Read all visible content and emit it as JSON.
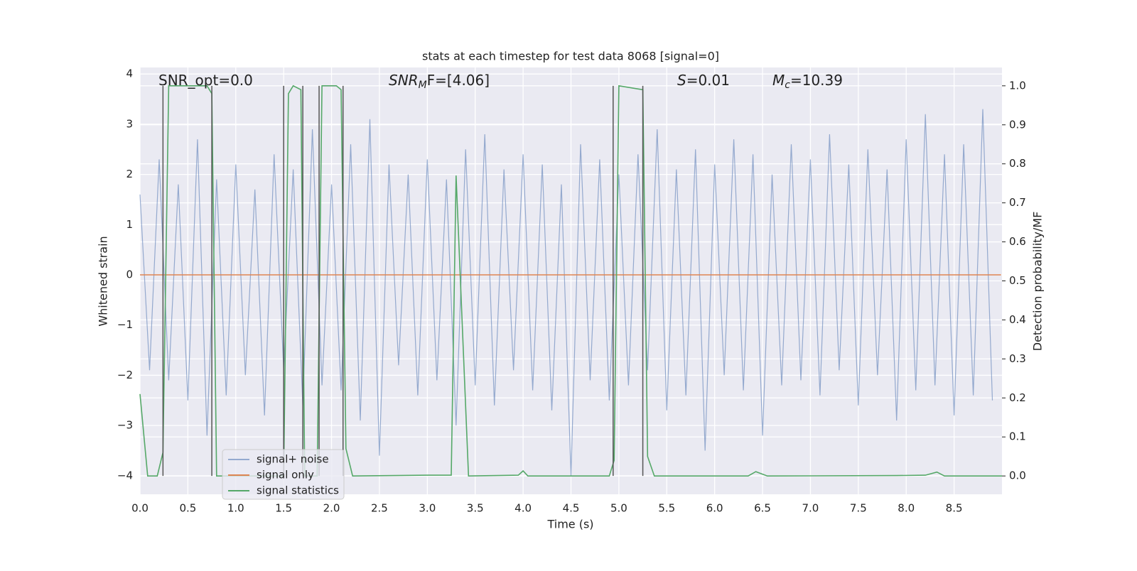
{
  "chart_data": {
    "type": "line",
    "title": "stats at each timestep for test data 8068 [signal=0]",
    "xlabel": "Time (s)",
    "ylabel": "Whitened strain",
    "y2label": "Detection probability/MF",
    "annotations": [
      {
        "text": "SNR_opt=0.0"
      },
      {
        "text": "SNR",
        "sub": "M",
        "rest": "F=[4.06]",
        "italic": true
      },
      {
        "text": "S",
        "rest": "=0.01",
        "italic": true
      },
      {
        "text": "M",
        "sub": "c",
        "rest": "=10.39",
        "italic": true
      }
    ],
    "xlim": [
      0,
      9.0
    ],
    "ylim": [
      -4.37,
      4.13
    ],
    "y2lim": [
      -0.047,
      1.047
    ],
    "xticks": [
      {
        "value": 0,
        "label": "0.0"
      },
      0.5,
      {
        "value": 1,
        "label": "1.0"
      },
      1.5,
      {
        "value": 2,
        "label": "2.0"
      },
      2.5,
      {
        "value": 3,
        "label": "3.0"
      },
      3.5,
      {
        "value": 4,
        "label": "4.0"
      },
      4.5,
      {
        "value": 5,
        "label": "5.0"
      },
      5.5,
      {
        "value": 6,
        "label": "6.0"
      },
      6.5,
      {
        "value": 7,
        "label": "7.0"
      },
      7.5,
      {
        "value": 8,
        "label": "8.0"
      },
      8.5
    ],
    "yticks": [
      {
        "value": -4,
        "label": "−4"
      },
      {
        "value": -3,
        "label": "−3"
      },
      {
        "value": -2,
        "label": "−2"
      },
      {
        "value": -1,
        "label": "−1"
      },
      0,
      1,
      2,
      3,
      4
    ],
    "y2ticks": [
      {
        "value": 0,
        "label": "0.0"
      },
      0.1,
      0.2,
      0.3,
      0.4,
      0.5,
      0.6,
      0.7,
      0.8,
      0.9,
      {
        "value": 1,
        "label": "1.0"
      }
    ],
    "grid": true,
    "legend": "lower left",
    "vlines": [
      0.24,
      0.75,
      1.5,
      1.7,
      1.87,
      2.12,
      4.94,
      5.25
    ],
    "vline_color": "#555555",
    "series": [
      {
        "name": "signal+ noise",
        "color": "#4c72b0",
        "x": [
          0.0,
          0.1,
          0.2,
          0.3,
          0.4,
          0.5,
          0.6,
          0.7,
          0.8,
          0.9,
          1.0,
          1.1,
          1.2,
          1.3,
          1.4,
          1.5,
          1.6,
          1.7,
          1.8,
          1.9,
          2.0,
          2.1,
          2.2,
          2.3,
          2.4,
          2.5,
          2.6,
          2.7,
          2.8,
          2.9,
          3.0,
          3.1,
          3.2,
          3.3,
          3.4,
          3.5,
          3.6,
          3.7,
          3.8,
          3.9,
          4.0,
          4.1,
          4.2,
          4.3,
          4.4,
          4.5,
          4.6,
          4.7,
          4.8,
          4.9,
          5.0,
          5.1,
          5.2,
          5.3,
          5.4,
          5.5,
          5.6,
          5.7,
          5.8,
          5.9,
          6.0,
          6.1,
          6.2,
          6.3,
          6.4,
          6.5,
          6.6,
          6.7,
          6.8,
          6.9,
          7.0,
          7.1,
          7.2,
          7.3,
          7.4,
          7.5,
          7.6,
          7.7,
          7.8,
          7.9,
          8.0,
          8.1,
          8.2,
          8.3,
          8.4,
          8.5,
          8.6,
          8.7,
          8.8,
          8.9
        ],
        "values": [
          1.6,
          -1.9,
          2.3,
          -2.1,
          1.8,
          -2.5,
          2.7,
          -3.2,
          1.9,
          -2.4,
          2.2,
          -2.0,
          1.7,
          -2.8,
          2.4,
          -1.9,
          2.1,
          -2.6,
          2.9,
          -2.2,
          1.8,
          -2.3,
          2.6,
          -2.9,
          3.1,
          -3.6,
          2.2,
          -1.8,
          2.0,
          -2.4,
          2.3,
          -2.1,
          1.9,
          -3.0,
          2.5,
          -2.2,
          2.8,
          -2.6,
          2.1,
          -1.9,
          2.4,
          -2.3,
          2.2,
          -2.7,
          1.8,
          -4.0,
          2.6,
          -2.1,
          2.3,
          -2.5,
          2.0,
          -2.2,
          2.4,
          -1.9,
          2.9,
          -2.7,
          2.1,
          -2.4,
          2.5,
          -3.5,
          2.2,
          -2.0,
          2.7,
          -2.3,
          2.4,
          -3.2,
          2.0,
          -2.2,
          2.6,
          -2.1,
          2.3,
          -2.4,
          2.8,
          -1.9,
          2.2,
          -2.6,
          2.5,
          -2.0,
          2.1,
          -2.9,
          2.7,
          -2.3,
          3.2,
          -2.2,
          2.4,
          -2.8,
          2.6,
          -2.4,
          3.3,
          -2.5
        ]
      },
      {
        "name": "signal only",
        "color": "#dd8452",
        "x": [
          0,
          8.99
        ],
        "values": [
          0,
          0
        ]
      },
      {
        "name": "signal statistics",
        "color": "#55a868",
        "axis": "y2",
        "x": [
          0,
          0.08,
          0.18,
          0.24,
          0.3,
          0.7,
          0.75,
          0.8,
          0.9,
          1.5,
          1.55,
          1.6,
          1.68,
          1.72,
          1.85,
          1.9,
          2.05,
          2.1,
          2.15,
          2.22,
          3.0,
          3.25,
          3.3,
          3.43,
          3.95,
          4.0,
          4.05,
          4.9,
          4.95,
          5.0,
          5.25,
          5.3,
          5.37,
          6.35,
          6.43,
          6.55,
          7.9,
          8.2,
          8.32,
          8.4,
          9.0
        ],
        "values": [
          0.21,
          0,
          0,
          0.06,
          1.0,
          1.0,
          0.98,
          0,
          0,
          0,
          0.98,
          1.0,
          0.99,
          0,
          0,
          1.0,
          1.0,
          0.99,
          0.07,
          0,
          0.002,
          0.002,
          0.77,
          0,
          0.002,
          0.013,
          0,
          0,
          0.04,
          1.0,
          0.99,
          0.05,
          0,
          0,
          0.011,
          0,
          0.001,
          0.002,
          0.01,
          0,
          0
        ]
      }
    ]
  }
}
